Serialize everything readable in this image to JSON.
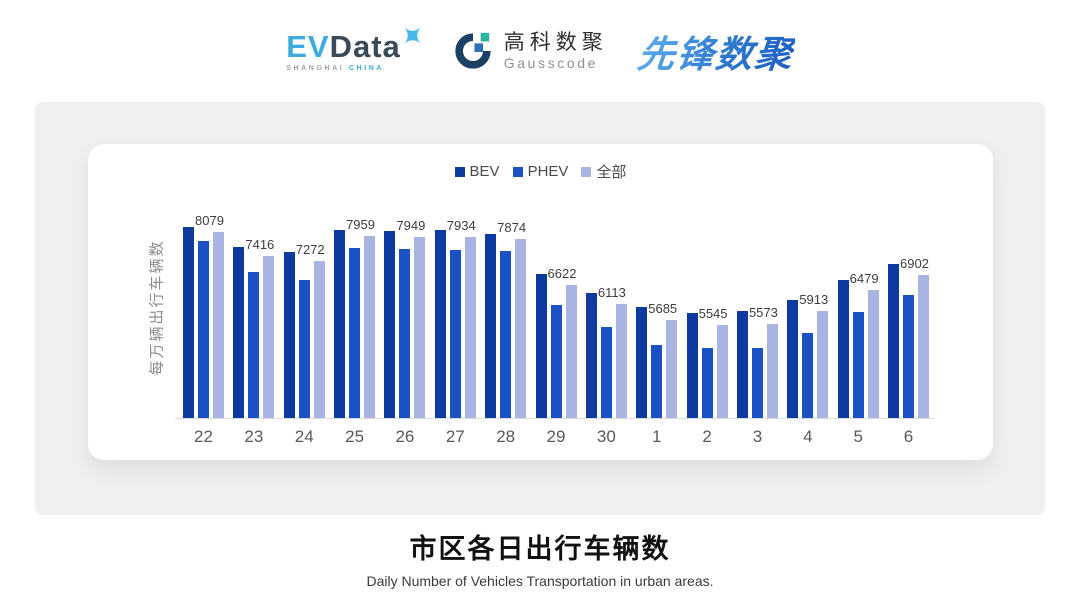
{
  "header": {
    "evdata": {
      "ev": "EV",
      "data": "Data",
      "sub_left": "SHANGHAI",
      "sub_right": "CHINA"
    },
    "gausscode": {
      "cn": "高科数聚",
      "en": "Gausscode"
    },
    "xianfeng": {
      "text": "先锋数聚"
    }
  },
  "chart_data": {
    "type": "bar",
    "title": "市区各日出行车辆数",
    "ylabel": "每万辆出行车辆数",
    "categories": [
      "22",
      "23",
      "24",
      "25",
      "26",
      "27",
      "28",
      "29",
      "30",
      "1",
      "2",
      "3",
      "4",
      "5",
      "6"
    ],
    "series": [
      {
        "name": "BEV",
        "color": "#0c3a9e",
        "values": [
          8220,
          7650,
          7530,
          8130,
          8110,
          8120,
          8030,
          6920,
          6420,
          6040,
          5870,
          5920,
          6210,
          6770,
          7200
        ],
        "show_labels": false
      },
      {
        "name": "PHEV",
        "color": "#1a52c6",
        "values": [
          7830,
          6990,
          6770,
          7630,
          7610,
          7580,
          7560,
          6080,
          5490,
          4990,
          4900,
          4900,
          5310,
          5900,
          6360
        ],
        "show_labels": false
      },
      {
        "name": "全部",
        "color": "#aab4e2",
        "values": [
          8079,
          7416,
          7272,
          7959,
          7949,
          7934,
          7874,
          6622,
          6113,
          5685,
          5545,
          5573,
          5913,
          6479,
          6902
        ],
        "show_labels": true
      }
    ],
    "ylim": [
      3000,
      8400
    ],
    "grid": false,
    "legend_position": "top",
    "value_labels_note": "numeric labels shown only above 全部 bars"
  },
  "footer": {
    "title": "市区各日出行车辆数",
    "subtitle": "Daily Number of Vehicles Transportation in urban areas."
  },
  "colors": {
    "panel_bg": "#efefef",
    "card_bg": "#ffffff",
    "axis_line": "#dcdcdc",
    "tick_label": "#595959",
    "data_label": "#3d3d3d",
    "y_axis_title": "#8c8c8c",
    "legend_text": "#4a4a4a",
    "evdata_blue": "#3dabdd",
    "evdata_dark": "#3b4956",
    "gausscode_navy": "#1c4064",
    "gausscode_teal": "#2bb3a3",
    "gausscode_blue": "#2f6fb3",
    "xianfeng_blue": "#2e7ad0"
  }
}
